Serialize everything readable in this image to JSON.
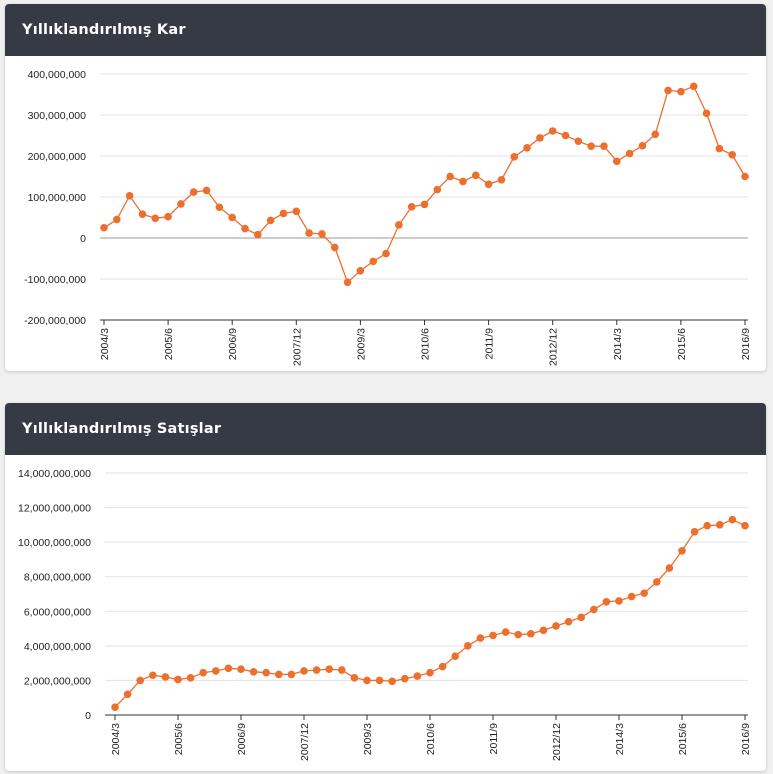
{
  "charts": [
    {
      "title": "Yıllıklandırılmış Kar",
      "chart_data": {
        "type": "line",
        "x_tick_labels": [
          "2004/3",
          "2005/6",
          "2006/9",
          "2007/12",
          "2009/3",
          "2010/6",
          "2011/9",
          "2012/12",
          "2014/3",
          "2015/6",
          "2016/9"
        ],
        "y_tick_labels": [
          "400,000,000",
          "300,000,000",
          "200,000,000",
          "100,000,000",
          "0",
          "-100,000,000",
          "-200,000,000"
        ],
        "ylim": [
          -200000000,
          400000000
        ],
        "series_color": "#ec6f2d",
        "values": [
          25000000,
          45000000,
          103000000,
          58000000,
          48000000,
          52000000,
          83000000,
          112000000,
          116000000,
          75000000,
          50000000,
          23000000,
          8000000,
          43000000,
          60000000,
          65000000,
          12000000,
          10000000,
          -23000000,
          -108000000,
          -80000000,
          -57000000,
          -38000000,
          32000000,
          76000000,
          82000000,
          118000000,
          150000000,
          138000000,
          153000000,
          131000000,
          142000000,
          198000000,
          220000000,
          244000000,
          261000000,
          250000000,
          236000000,
          224000000,
          224000000,
          187000000,
          206000000,
          225000000,
          253000000,
          360000000,
          357000000,
          370000000,
          304000000,
          218000000,
          203000000,
          150000000
        ]
      }
    },
    {
      "title": "Yıllıklandırılmış Satışlar",
      "chart_data": {
        "type": "line",
        "x_tick_labels": [
          "2004/3",
          "2005/6",
          "2006/9",
          "2007/12",
          "2009/3",
          "2010/6",
          "2011/9",
          "2012/12",
          "2014/3",
          "2015/6",
          "2016/9"
        ],
        "y_tick_labels": [
          "14,000,000,000",
          "12,000,000,000",
          "10,000,000,000",
          "8,000,000,000",
          "6,000,000,000",
          "4,000,000,000",
          "2,000,000,000",
          "0"
        ],
        "ylim": [
          0,
          14000000000
        ],
        "series_color": "#ec6f2d",
        "values": [
          450000000,
          1200000000,
          2000000000,
          2300000000,
          2200000000,
          2050000000,
          2150000000,
          2450000000,
          2550000000,
          2700000000,
          2650000000,
          2500000000,
          2450000000,
          2350000000,
          2350000000,
          2550000000,
          2600000000,
          2650000000,
          2600000000,
          2150000000,
          2000000000,
          2000000000,
          1950000000,
          2100000000,
          2250000000,
          2450000000,
          2800000000,
          3400000000,
          4000000000,
          4450000000,
          4600000000,
          4800000000,
          4650000000,
          4700000000,
          4900000000,
          5150000000,
          5400000000,
          5650000000,
          6100000000,
          6550000000,
          6600000000,
          6850000000,
          7050000000,
          7700000000,
          8500000000,
          9500000000,
          10600000000,
          10950000000,
          11000000000,
          11300000000,
          10950000000
        ]
      }
    }
  ]
}
